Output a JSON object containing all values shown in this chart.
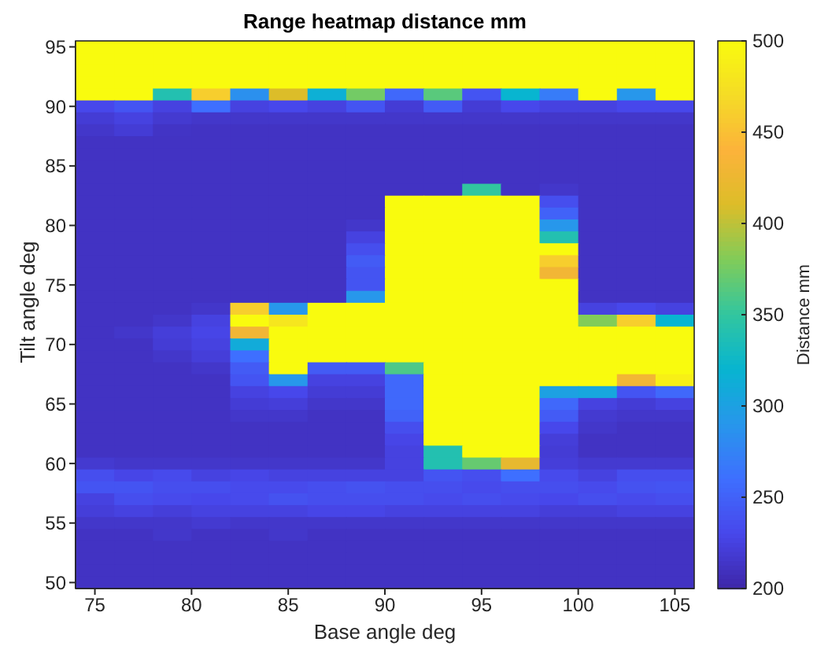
{
  "chart_data": {
    "type": "heatmap",
    "title": "Range heatmap distance mm",
    "xlabel": "Base angle deg",
    "ylabel": "Tilt angle deg",
    "clabel": "Distance mm",
    "xlim": [
      74,
      106
    ],
    "xticks": [
      75,
      80,
      85,
      90,
      95,
      100,
      105
    ],
    "ylim": [
      49.5,
      95.5
    ],
    "yticks": [
      50,
      55,
      60,
      65,
      70,
      75,
      80,
      85,
      90,
      95
    ],
    "clim": [
      200,
      500
    ],
    "cticks": [
      200,
      250,
      300,
      350,
      400,
      450,
      500
    ],
    "cells": [
      [
        500,
        500,
        500,
        500,
        500,
        500,
        500,
        500,
        500,
        500,
        500,
        500,
        500,
        500,
        500,
        500
      ],
      [
        500,
        500,
        500,
        500,
        500,
        500,
        500,
        500,
        500,
        500,
        500,
        500,
        500,
        500,
        500,
        500
      ],
      [
        500,
        500,
        500,
        500,
        500,
        500,
        500,
        500,
        500,
        500,
        500,
        500,
        500,
        500,
        500,
        500
      ],
      [
        500,
        500,
        500,
        500,
        500,
        500,
        500,
        500,
        500,
        500,
        500,
        500,
        500,
        500,
        500,
        500
      ],
      [
        500,
        500,
        340,
        460,
        285,
        410,
        315,
        375,
        255,
        365,
        240,
        320,
        270,
        500,
        290,
        500
      ],
      [
        230,
        240,
        225,
        260,
        225,
        230,
        225,
        240,
        220,
        245,
        220,
        230,
        225,
        225,
        230,
        230
      ],
      [
        220,
        225,
        218,
        215,
        215,
        215,
        215,
        215,
        215,
        215,
        215,
        215,
        215,
        215,
        215,
        215
      ],
      [
        215,
        220,
        213,
        212,
        212,
        212,
        212,
        212,
        212,
        212,
        212,
        212,
        212,
        212,
        212,
        212
      ],
      [
        212,
        212,
        212,
        212,
        212,
        212,
        212,
        212,
        212,
        212,
        212,
        212,
        212,
        212,
        212,
        212
      ],
      [
        212,
        212,
        212,
        212,
        212,
        212,
        212,
        212,
        212,
        212,
        212,
        212,
        212,
        212,
        212,
        212
      ],
      [
        212,
        212,
        212,
        212,
        212,
        212,
        212,
        212,
        212,
        212,
        212,
        212,
        212,
        212,
        212,
        212
      ],
      [
        212,
        212,
        212,
        212,
        212,
        212,
        212,
        212,
        212,
        212,
        212,
        212,
        212,
        212,
        212,
        212
      ],
      [
        212,
        212,
        212,
        212,
        212,
        212,
        212,
        212,
        212,
        212,
        350,
        212,
        215,
        212,
        212,
        212
      ],
      [
        212,
        212,
        212,
        212,
        212,
        212,
        212,
        212,
        500,
        500,
        500,
        500,
        235,
        212,
        212,
        212
      ],
      [
        212,
        212,
        212,
        212,
        212,
        212,
        212,
        212,
        500,
        500,
        500,
        500,
        250,
        212,
        212,
        212
      ],
      [
        212,
        212,
        212,
        212,
        212,
        212,
        212,
        215,
        500,
        500,
        500,
        500,
        290,
        212,
        212,
        212
      ],
      [
        212,
        212,
        212,
        212,
        212,
        212,
        212,
        225,
        500,
        500,
        500,
        500,
        340,
        212,
        212,
        212
      ],
      [
        212,
        212,
        212,
        212,
        212,
        212,
        212,
        235,
        500,
        500,
        500,
        500,
        500,
        212,
        212,
        212
      ],
      [
        212,
        212,
        212,
        212,
        212,
        212,
        212,
        245,
        500,
        500,
        500,
        500,
        460,
        212,
        212,
        212
      ],
      [
        212,
        212,
        212,
        212,
        212,
        212,
        212,
        240,
        500,
        500,
        500,
        500,
        430,
        212,
        212,
        212
      ],
      [
        212,
        212,
        212,
        212,
        212,
        212,
        212,
        240,
        500,
        500,
        500,
        500,
        500,
        212,
        212,
        212
      ],
      [
        212,
        212,
        212,
        212,
        212,
        212,
        212,
        290,
        500,
        500,
        500,
        500,
        500,
        212,
        212,
        212
      ],
      [
        212,
        212,
        212,
        215,
        460,
        290,
        500,
        500,
        500,
        500,
        500,
        500,
        500,
        225,
        230,
        225
      ],
      [
        212,
        212,
        215,
        225,
        500,
        480,
        500,
        500,
        500,
        500,
        500,
        500,
        500,
        380,
        460,
        320
      ],
      [
        212,
        215,
        222,
        228,
        430,
        500,
        500,
        500,
        500,
        500,
        500,
        500,
        500,
        500,
        500,
        500
      ],
      [
        212,
        212,
        220,
        225,
        310,
        500,
        500,
        500,
        500,
        500,
        500,
        500,
        500,
        500,
        500,
        500
      ],
      [
        212,
        212,
        215,
        222,
        260,
        500,
        500,
        500,
        500,
        500,
        500,
        500,
        500,
        500,
        500,
        500
      ],
      [
        212,
        212,
        212,
        215,
        245,
        500,
        245,
        245,
        360,
        500,
        500,
        500,
        500,
        500,
        500,
        500
      ],
      [
        212,
        212,
        212,
        212,
        240,
        290,
        225,
        225,
        255,
        500,
        500,
        500,
        500,
        500,
        430,
        490
      ],
      [
        212,
        212,
        212,
        212,
        225,
        230,
        220,
        220,
        255,
        500,
        500,
        500,
        300,
        305,
        240,
        255
      ],
      [
        212,
        212,
        212,
        212,
        220,
        222,
        215,
        215,
        255,
        500,
        500,
        500,
        255,
        225,
        220,
        225
      ],
      [
        212,
        212,
        212,
        212,
        215,
        215,
        212,
        212,
        250,
        500,
        500,
        500,
        245,
        218,
        215,
        215
      ],
      [
        212,
        212,
        212,
        212,
        212,
        212,
        212,
        212,
        235,
        500,
        500,
        500,
        230,
        215,
        212,
        212
      ],
      [
        212,
        212,
        212,
        212,
        212,
        212,
        212,
        212,
        228,
        500,
        500,
        500,
        222,
        212,
        212,
        212
      ],
      [
        212,
        212,
        212,
        212,
        212,
        212,
        212,
        212,
        225,
        340,
        500,
        500,
        220,
        212,
        212,
        212
      ],
      [
        218,
        215,
        215,
        215,
        215,
        215,
        215,
        215,
        225,
        340,
        370,
        420,
        222,
        218,
        218,
        218
      ],
      [
        235,
        228,
        232,
        225,
        228,
        225,
        225,
        225,
        225,
        240,
        235,
        260,
        232,
        225,
        235,
        235
      ],
      [
        240,
        240,
        235,
        235,
        232,
        232,
        235,
        238,
        235,
        235,
        232,
        235,
        235,
        232,
        238,
        240
      ],
      [
        225,
        235,
        232,
        230,
        232,
        238,
        235,
        235,
        235,
        232,
        235,
        232,
        230,
        235,
        232,
        235
      ],
      [
        222,
        225,
        222,
        225,
        225,
        225,
        228,
        228,
        225,
        225,
        225,
        225,
        222,
        222,
        225,
        225
      ],
      [
        215,
        215,
        215,
        218,
        215,
        215,
        215,
        215,
        215,
        215,
        215,
        215,
        215,
        215,
        215,
        215
      ],
      [
        212,
        212,
        215,
        212,
        212,
        215,
        212,
        212,
        212,
        212,
        212,
        212,
        212,
        212,
        212,
        212
      ],
      [
        212,
        212,
        212,
        212,
        212,
        212,
        212,
        212,
        212,
        212,
        212,
        212,
        212,
        212,
        212,
        212
      ],
      [
        212,
        212,
        212,
        212,
        212,
        212,
        212,
        212,
        212,
        212,
        212,
        212,
        212,
        212,
        212,
        212
      ],
      [
        212,
        212,
        212,
        212,
        212,
        212,
        212,
        212,
        212,
        212,
        212,
        212,
        212,
        212,
        212,
        212
      ],
      [
        212,
        212,
        212,
        212,
        212,
        212,
        212,
        212,
        212,
        212,
        212,
        212,
        212,
        212,
        212,
        212
      ]
    ]
  }
}
